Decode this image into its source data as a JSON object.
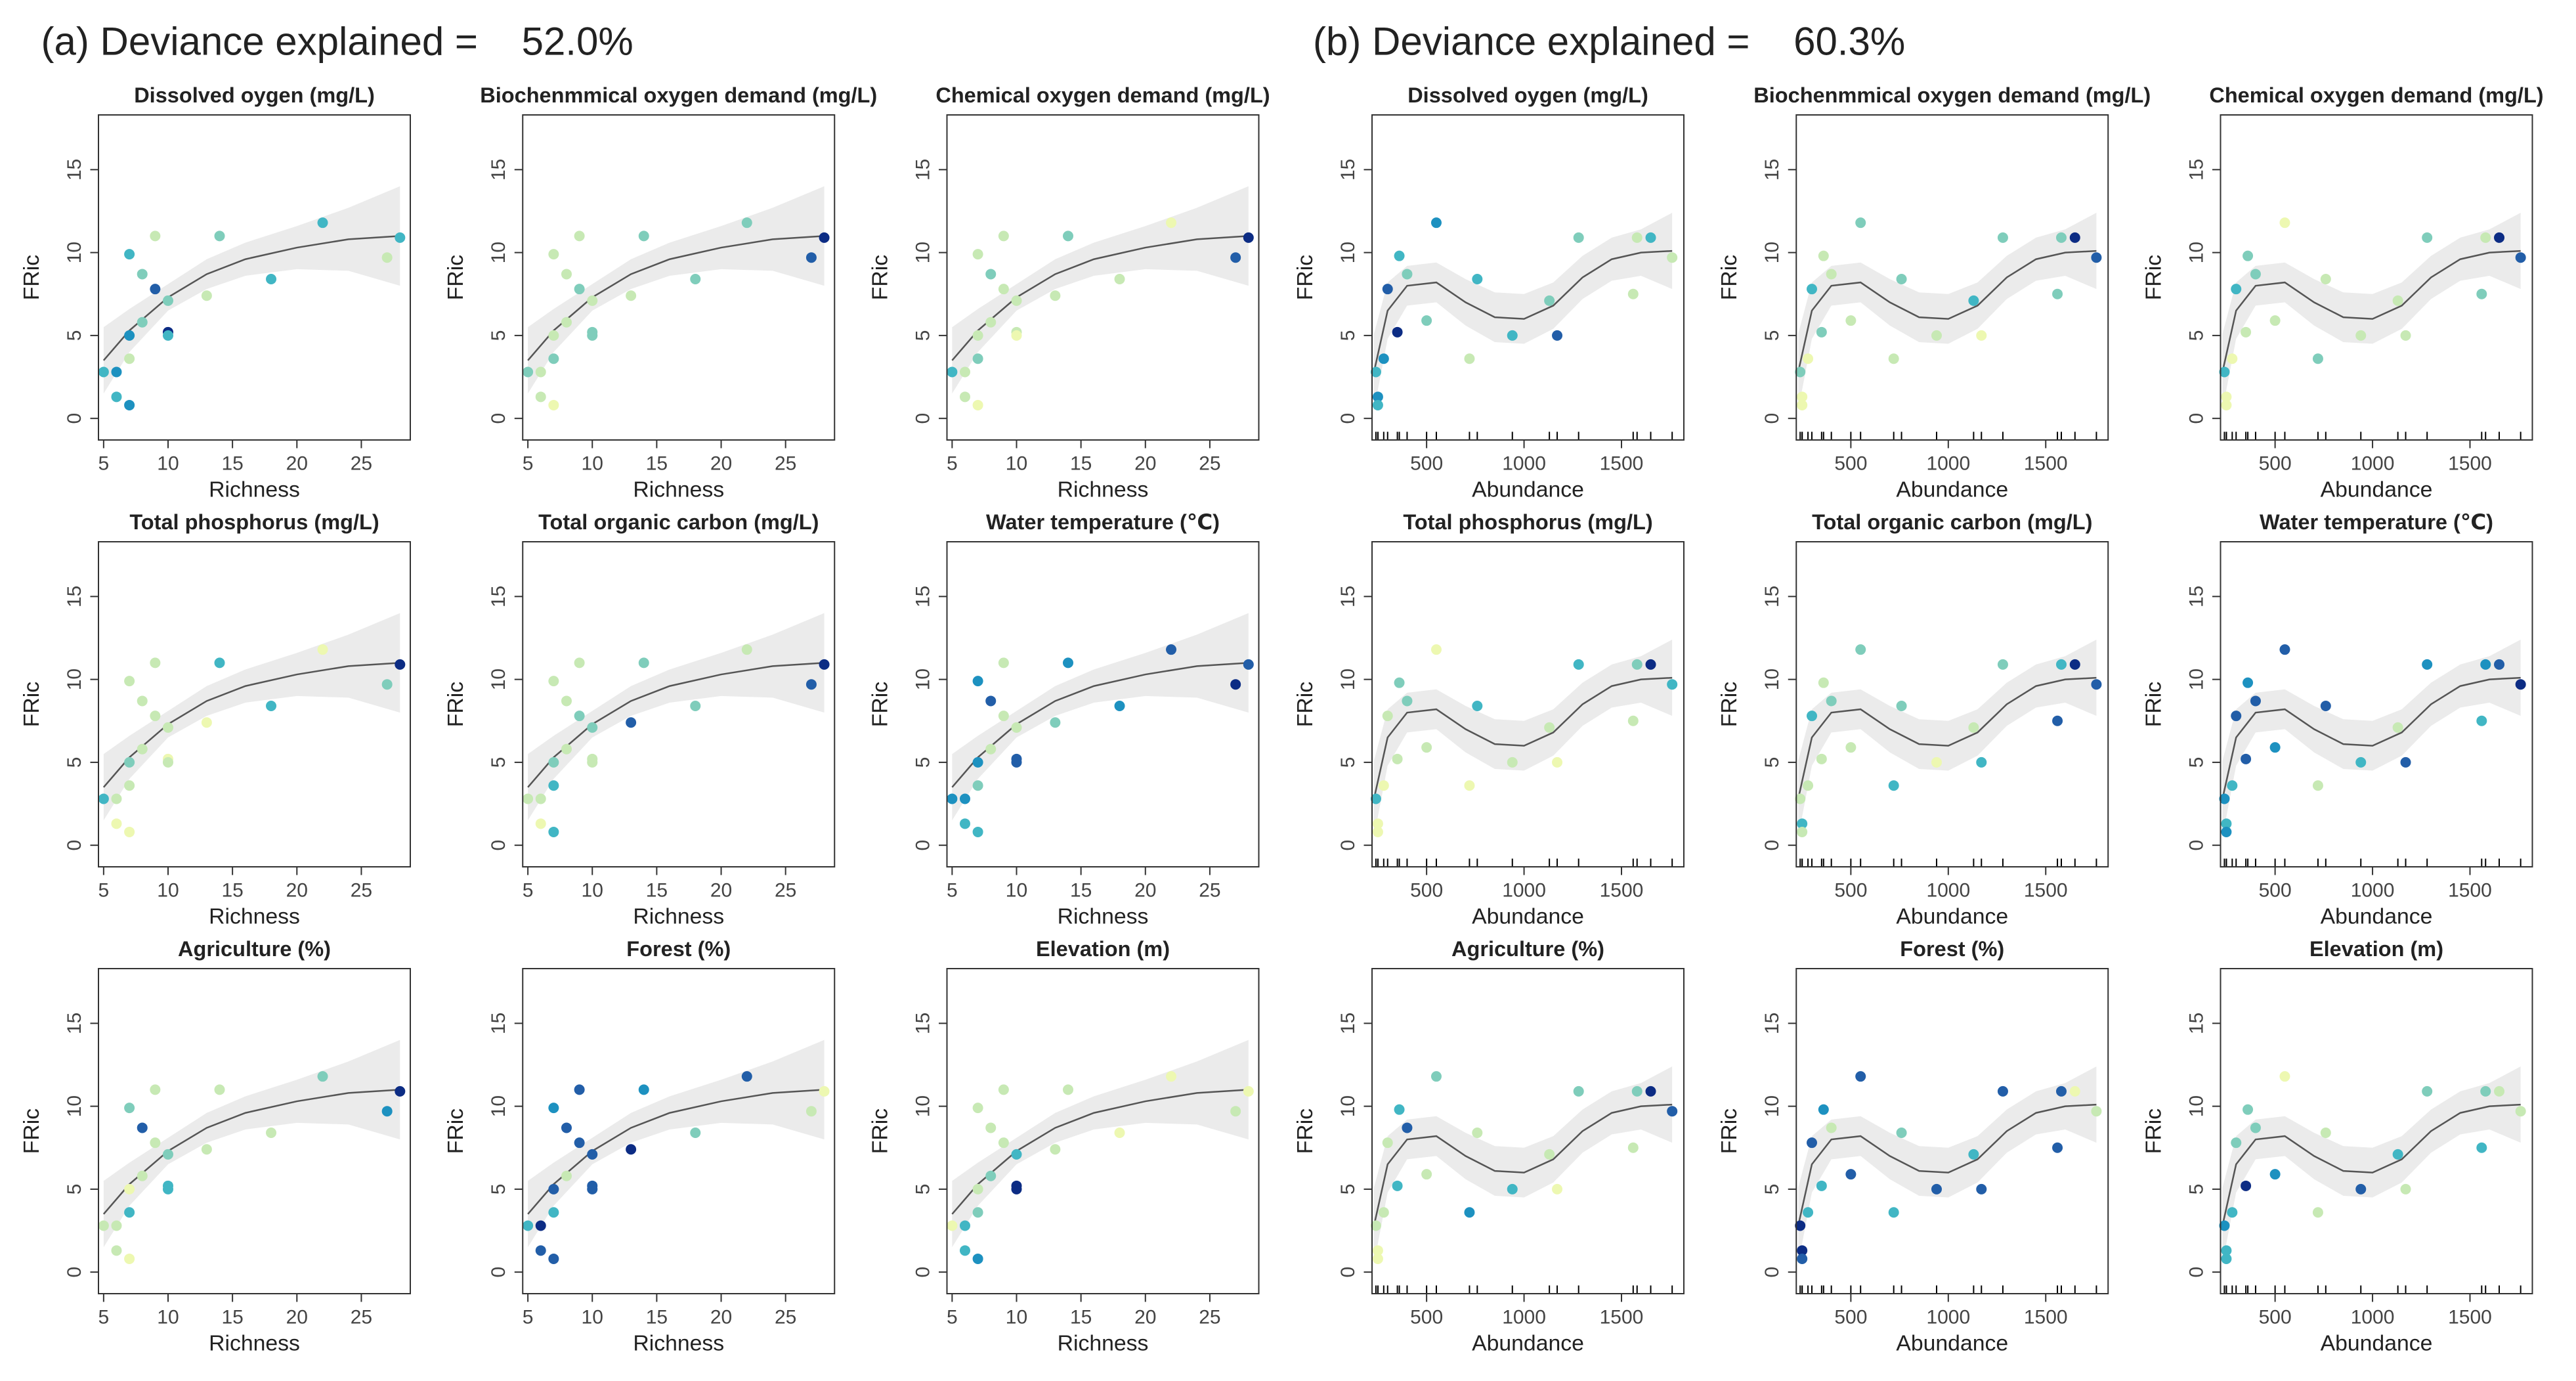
{
  "chart_data": [
    {
      "type": "scatter",
      "title": "(a) Deviance explained =    52.0%",
      "x_label": "Richness",
      "y_label": "FRic",
      "x": [
        5,
        6,
        6,
        7,
        7,
        7,
        7,
        8,
        8,
        9,
        9,
        10,
        10,
        10,
        13,
        14,
        18,
        22,
        27,
        28
      ],
      "y": [
        2.8,
        2.8,
        1.3,
        0.8,
        3.6,
        5.0,
        9.9,
        8.7,
        5.8,
        11.0,
        7.8,
        5.2,
        5.0,
        7.1,
        7.4,
        11.0,
        8.4,
        11.8,
        9.7,
        10.9
      ],
      "xlim": [
        4.6,
        28.8
      ],
      "ylim": [
        -1.3,
        18.3
      ],
      "xticks": [
        5,
        10,
        15,
        20,
        25
      ],
      "yticks": [
        0,
        5,
        10,
        15
      ],
      "rug": false,
      "fit": {
        "x": [
          5,
          7,
          10,
          13,
          16,
          20,
          24,
          28
        ],
        "y": [
          3.5,
          5.3,
          7.3,
          8.7,
          9.6,
          10.3,
          10.8,
          11.0
        ],
        "lower": [
          1.5,
          4.0,
          6.5,
          7.8,
          8.6,
          9.0,
          8.9,
          8.0
        ],
        "upper": [
          5.5,
          6.6,
          8.1,
          9.6,
          10.6,
          11.6,
          12.7,
          14.0
        ]
      },
      "panels": [
        {
          "title": "Dissolved oygen (mg/L)",
          "colors": [
            "#41b6c4",
            "#1d91c0",
            "#41b6c4",
            "#1d91c0",
            "#c7e9b4",
            "#1d91c0",
            "#41b6c4",
            "#7fcdbb",
            "#7fcdbb",
            "#c7e9b4",
            "#225ea8",
            "#0c2c84",
            "#41b6c4",
            "#7fcdbb",
            "#c7e9b4",
            "#7fcdbb",
            "#41b6c4",
            "#41b6c4",
            "#c7e9b4",
            "#41b6c4"
          ]
        },
        {
          "title": "Biochenmmical oxygen demand (mg/L)",
          "colors": [
            "#7fcdbb",
            "#c7e9b4",
            "#c7e9b4",
            "#edf8b1",
            "#7fcdbb",
            "#c7e9b4",
            "#c7e9b4",
            "#c7e9b4",
            "#c7e9b4",
            "#c7e9b4",
            "#7fcdbb",
            "#7fcdbb",
            "#7fcdbb",
            "#c7e9b4",
            "#c7e9b4",
            "#7fcdbb",
            "#7fcdbb",
            "#7fcdbb",
            "#225ea8",
            "#0c2c84"
          ]
        },
        {
          "title": "Chemical oxygen demand (mg/L)",
          "colors": [
            "#41b6c4",
            "#c7e9b4",
            "#c7e9b4",
            "#edf8b1",
            "#7fcdbb",
            "#c7e9b4",
            "#c7e9b4",
            "#7fcdbb",
            "#c7e9b4",
            "#c7e9b4",
            "#c7e9b4",
            "#c7e9b4",
            "#edf8b1",
            "#c7e9b4",
            "#c7e9b4",
            "#7fcdbb",
            "#c7e9b4",
            "#edf8b1",
            "#225ea8",
            "#0c2c84"
          ]
        },
        {
          "title": "Total phosphorus (mg/L)",
          "colors": [
            "#41b6c4",
            "#c7e9b4",
            "#edf8b1",
            "#edf8b1",
            "#c7e9b4",
            "#7fcdbb",
            "#c7e9b4",
            "#c7e9b4",
            "#c7e9b4",
            "#c7e9b4",
            "#c7e9b4",
            "#edf8b1",
            "#c7e9b4",
            "#c7e9b4",
            "#edf8b1",
            "#41b6c4",
            "#41b6c4",
            "#edf8b1",
            "#7fcdbb",
            "#0c2c84"
          ]
        },
        {
          "title": "Total organic carbon (mg/L)",
          "colors": [
            "#c7e9b4",
            "#c7e9b4",
            "#edf8b1",
            "#41b6c4",
            "#41b6c4",
            "#7fcdbb",
            "#c7e9b4",
            "#c7e9b4",
            "#c7e9b4",
            "#c7e9b4",
            "#7fcdbb",
            "#c7e9b4",
            "#c7e9b4",
            "#7fcdbb",
            "#225ea8",
            "#7fcdbb",
            "#7fcdbb",
            "#c7e9b4",
            "#225ea8",
            "#0c2c84"
          ]
        },
        {
          "title": "Water temperature (℃)",
          "colors": [
            "#1d91c0",
            "#1d91c0",
            "#41b6c4",
            "#41b6c4",
            "#7fcdbb",
            "#1d91c0",
            "#1d91c0",
            "#225ea8",
            "#c7e9b4",
            "#c7e9b4",
            "#c7e9b4",
            "#225ea8",
            "#225ea8",
            "#c7e9b4",
            "#7fcdbb",
            "#1d91c0",
            "#1d91c0",
            "#225ea8",
            "#0c2c84",
            "#225ea8"
          ]
        },
        {
          "title": "Agriculture (%)",
          "colors": [
            "#c7e9b4",
            "#c7e9b4",
            "#c7e9b4",
            "#edf8b1",
            "#41b6c4",
            "#edf8b1",
            "#7fcdbb",
            "#225ea8",
            "#c7e9b4",
            "#c7e9b4",
            "#c7e9b4",
            "#41b6c4",
            "#41b6c4",
            "#7fcdbb",
            "#c7e9b4",
            "#c7e9b4",
            "#c7e9b4",
            "#7fcdbb",
            "#1d91c0",
            "#0c2c84"
          ]
        },
        {
          "title": "Forest (%)",
          "colors": [
            "#41b6c4",
            "#0c2c84",
            "#225ea8",
            "#225ea8",
            "#41b6c4",
            "#225ea8",
            "#1d91c0",
            "#225ea8",
            "#c7e9b4",
            "#225ea8",
            "#225ea8",
            "#225ea8",
            "#225ea8",
            "#225ea8",
            "#0c2c84",
            "#1d91c0",
            "#7fcdbb",
            "#225ea8",
            "#c7e9b4",
            "#edf8b1"
          ]
        },
        {
          "title": "Elevation (m)",
          "colors": [
            "#edf8b1",
            "#41b6c4",
            "#41b6c4",
            "#1d91c0",
            "#7fcdbb",
            "#c7e9b4",
            "#c7e9b4",
            "#c7e9b4",
            "#7fcdbb",
            "#c7e9b4",
            "#c7e9b4",
            "#0c2c84",
            "#0c2c84",
            "#41b6c4",
            "#c7e9b4",
            "#c7e9b4",
            "#edf8b1",
            "#edf8b1",
            "#c7e9b4",
            "#edf8b1"
          ]
        }
      ]
    },
    {
      "type": "scatter",
      "title": "(b) Deviance explained =    60.3%",
      "x_label": "Abundance",
      "y_label": "FRic",
      "x": [
        240,
        250,
        250,
        280,
        300,
        350,
        360,
        400,
        500,
        550,
        720,
        760,
        940,
        1130,
        1170,
        1280,
        1560,
        1580,
        1650,
        1760
      ],
      "y": [
        2.8,
        1.3,
        0.8,
        3.6,
        7.8,
        5.2,
        9.8,
        8.7,
        5.9,
        11.8,
        3.6,
        8.4,
        5.0,
        7.1,
        5.0,
        10.9,
        7.5,
        10.9,
        10.9,
        9.7
      ],
      "xlim": [
        220,
        1820
      ],
      "ylim": [
        -1.3,
        18.3
      ],
      "xticks": [
        500,
        1000,
        1500
      ],
      "yticks": [
        0,
        5,
        10,
        15
      ],
      "rug": true,
      "fit": {
        "x": [
          230,
          300,
          400,
          550,
          700,
          850,
          1000,
          1150,
          1300,
          1450,
          1600,
          1760
        ],
        "y": [
          2.8,
          6.5,
          8.0,
          8.2,
          7.0,
          6.1,
          6.0,
          6.8,
          8.5,
          9.6,
          10.0,
          10.1
        ],
        "lower": [
          0.5,
          4.8,
          6.8,
          7.0,
          5.6,
          4.6,
          4.5,
          5.4,
          7.2,
          8.3,
          8.6,
          7.8
        ],
        "upper": [
          5.1,
          8.2,
          9.2,
          9.4,
          8.4,
          7.6,
          7.5,
          8.2,
          9.8,
          10.9,
          11.4,
          12.4
        ]
      },
      "panels": [
        {
          "title": "Dissolved oygen (mg/L)",
          "colors": [
            "#41b6c4",
            "#1d91c0",
            "#41b6c4",
            "#1d91c0",
            "#225ea8",
            "#0c2c84",
            "#41b6c4",
            "#7fcdbb",
            "#7fcdbb",
            "#1d91c0",
            "#c7e9b4",
            "#41b6c4",
            "#41b6c4",
            "#7fcdbb",
            "#225ea8",
            "#7fcdbb",
            "#c7e9b4",
            "#c7e9b4",
            "#41b6c4",
            "#c7e9b4"
          ]
        },
        {
          "title": "Biochenmmical oxygen demand (mg/L)",
          "colors": [
            "#7fcdbb",
            "#edf8b1",
            "#edf8b1",
            "#edf8b1",
            "#41b6c4",
            "#7fcdbb",
            "#c7e9b4",
            "#c7e9b4",
            "#c7e9b4",
            "#7fcdbb",
            "#c7e9b4",
            "#7fcdbb",
            "#c7e9b4",
            "#41b6c4",
            "#edf8b1",
            "#7fcdbb",
            "#7fcdbb",
            "#7fcdbb",
            "#0c2c84",
            "#225ea8"
          ]
        },
        {
          "title": "Chemical oxygen demand (mg/L)",
          "colors": [
            "#41b6c4",
            "#edf8b1",
            "#edf8b1",
            "#edf8b1",
            "#41b6c4",
            "#c7e9b4",
            "#7fcdbb",
            "#7fcdbb",
            "#c7e9b4",
            "#edf8b1",
            "#7fcdbb",
            "#c7e9b4",
            "#c7e9b4",
            "#c7e9b4",
            "#c7e9b4",
            "#7fcdbb",
            "#7fcdbb",
            "#c7e9b4",
            "#0c2c84",
            "#225ea8"
          ]
        },
        {
          "title": "Total phosphorus (mg/L)",
          "colors": [
            "#41b6c4",
            "#edf8b1",
            "#edf8b1",
            "#edf8b1",
            "#c7e9b4",
            "#c7e9b4",
            "#7fcdbb",
            "#7fcdbb",
            "#c7e9b4",
            "#edf8b1",
            "#edf8b1",
            "#41b6c4",
            "#c7e9b4",
            "#c7e9b4",
            "#edf8b1",
            "#41b6c4",
            "#c7e9b4",
            "#7fcdbb",
            "#0c2c84",
            "#41b6c4"
          ]
        },
        {
          "title": "Total organic carbon (mg/L)",
          "colors": [
            "#c7e9b4",
            "#41b6c4",
            "#c7e9b4",
            "#c7e9b4",
            "#41b6c4",
            "#c7e9b4",
            "#c7e9b4",
            "#7fcdbb",
            "#c7e9b4",
            "#7fcdbb",
            "#41b6c4",
            "#7fcdbb",
            "#edf8b1",
            "#c7e9b4",
            "#41b6c4",
            "#7fcdbb",
            "#225ea8",
            "#41b6c4",
            "#0c2c84",
            "#225ea8"
          ]
        },
        {
          "title": "Water temperature (℃)",
          "colors": [
            "#1d91c0",
            "#41b6c4",
            "#1d91c0",
            "#41b6c4",
            "#225ea8",
            "#225ea8",
            "#1d91c0",
            "#225ea8",
            "#1d91c0",
            "#225ea8",
            "#c7e9b4",
            "#225ea8",
            "#41b6c4",
            "#c7e9b4",
            "#225ea8",
            "#1d91c0",
            "#41b6c4",
            "#1d91c0",
            "#225ea8",
            "#0c2c84"
          ]
        },
        {
          "title": "Agriculture (%)",
          "colors": [
            "#c7e9b4",
            "#edf8b1",
            "#edf8b1",
            "#c7e9b4",
            "#c7e9b4",
            "#41b6c4",
            "#41b6c4",
            "#225ea8",
            "#c7e9b4",
            "#7fcdbb",
            "#1d91c0",
            "#c7e9b4",
            "#41b6c4",
            "#c7e9b4",
            "#edf8b1",
            "#7fcdbb",
            "#c7e9b4",
            "#7fcdbb",
            "#0c2c84",
            "#225ea8"
          ]
        },
        {
          "title": "Forest (%)",
          "colors": [
            "#0c2c84",
            "#0c2c84",
            "#225ea8",
            "#41b6c4",
            "#225ea8",
            "#41b6c4",
            "#1d91c0",
            "#c7e9b4",
            "#225ea8",
            "#225ea8",
            "#41b6c4",
            "#7fcdbb",
            "#225ea8",
            "#41b6c4",
            "#225ea8",
            "#225ea8",
            "#225ea8",
            "#225ea8",
            "#edf8b1",
            "#c7e9b4"
          ]
        },
        {
          "title": "Elevation (m)",
          "colors": [
            "#1d91c0",
            "#41b6c4",
            "#41b6c4",
            "#41b6c4",
            "#7fcdbb",
            "#0c2c84",
            "#7fcdbb",
            "#7fcdbb",
            "#1d91c0",
            "#edf8b1",
            "#c7e9b4",
            "#c7e9b4",
            "#225ea8",
            "#41b6c4",
            "#c7e9b4",
            "#7fcdbb",
            "#41b6c4",
            "#7fcdbb",
            "#c7e9b4",
            "#c7e9b4"
          ]
        }
      ]
    }
  ]
}
